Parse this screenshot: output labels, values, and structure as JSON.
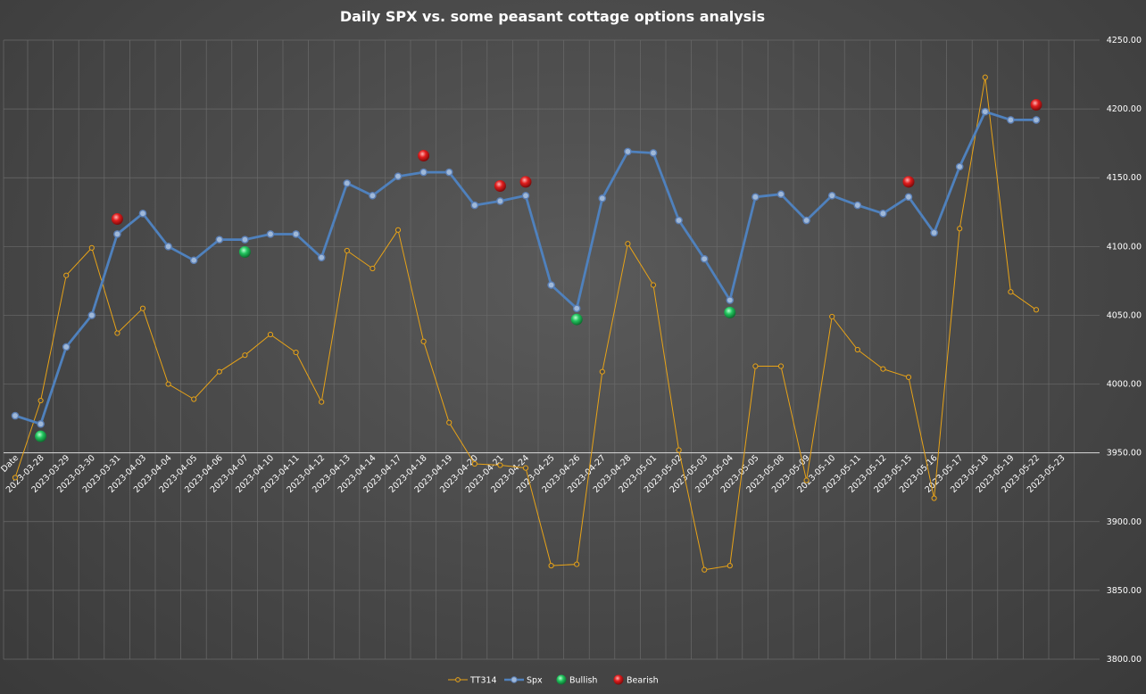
{
  "chart_data": {
    "type": "line",
    "title": "Daily SPX vs. some peasant cottage options analysis",
    "xlabel": "",
    "ylabel": "",
    "ylim": [
      3800,
      4250
    ],
    "y_ticks": [
      "3800.00",
      "3850.00",
      "3900.00",
      "3950.00",
      "4000.00",
      "4050.00",
      "4100.00",
      "4150.00",
      "4200.00",
      "4250.00"
    ],
    "categories": [
      "Date",
      "2023-03-28",
      "2023-03-29",
      "2023-03-30",
      "2023-03-31",
      "2023-04-03",
      "2023-04-04",
      "2023-04-05",
      "2023-04-06",
      "2023-04-07",
      "2023-04-10",
      "2023-04-11",
      "2023-04-12",
      "2023-04-13",
      "2023-04-14",
      "2023-04-17",
      "2023-04-18",
      "2023-04-19",
      "2023-04-20",
      "2023-04-21",
      "2023-04-24",
      "2023-04-25",
      "2023-04-26",
      "2023-04-27",
      "2023-04-28",
      "2023-05-01",
      "2023-05-02",
      "2023-05-03",
      "2023-05-04",
      "2023-05-05",
      "2023-05-08",
      "2023-05-09",
      "2023-05-10",
      "2023-05-11",
      "2023-05-12",
      "2023-05-15",
      "2023-05-16",
      "2023-05-17",
      "2023-05-18",
      "2023-05-19",
      "2023-05-22",
      "2023-05-23"
    ],
    "grid": true,
    "legend_position": "bottom",
    "series": [
      {
        "name": "TT314",
        "kind": "line",
        "color": "#e8a317",
        "values": [
          3932,
          3988,
          4079,
          4099,
          4037,
          4055,
          4000,
          3989,
          4009,
          4021,
          4036,
          4023,
          3987,
          4097,
          4084,
          4112,
          4031,
          3972,
          3942,
          3941,
          3939,
          3868,
          3869,
          4009,
          4102,
          4072,
          3952,
          3865,
          3868,
          4013,
          4013,
          3930,
          4049,
          4025,
          4011,
          4005,
          3917,
          4113,
          4223,
          4067,
          4054,
          null
        ]
      },
      {
        "name": "Spx",
        "kind": "line",
        "color": "#4f81bd",
        "values": [
          3977,
          3971,
          4027,
          4050,
          4109,
          4124,
          4100,
          4090,
          4105,
          4105,
          4109,
          4109,
          4092,
          4146,
          4137,
          4151,
          4154,
          4154,
          4130,
          4133,
          4137,
          4072,
          4055,
          4135,
          4169,
          4168,
          4119,
          4091,
          4061,
          4136,
          4138,
          4119,
          4137,
          4130,
          4124,
          4136,
          4110,
          4158,
          4198,
          4192,
          4192,
          null
        ]
      },
      {
        "name": "Bullish",
        "kind": "marker",
        "color": "#22c55e",
        "values": [
          null,
          3962,
          null,
          null,
          null,
          null,
          null,
          null,
          null,
          4096,
          null,
          null,
          null,
          null,
          null,
          null,
          null,
          null,
          null,
          null,
          null,
          null,
          4047,
          null,
          null,
          null,
          null,
          null,
          4052,
          null,
          null,
          null,
          null,
          null,
          null,
          null,
          null,
          null,
          null,
          null,
          null,
          null
        ]
      },
      {
        "name": "Bearish",
        "kind": "marker",
        "color": "#e11d1d",
        "values": [
          null,
          null,
          null,
          null,
          4120,
          null,
          null,
          null,
          null,
          null,
          null,
          null,
          null,
          null,
          null,
          null,
          4166,
          null,
          null,
          4144,
          4147,
          null,
          null,
          null,
          null,
          null,
          null,
          null,
          null,
          null,
          null,
          null,
          null,
          null,
          null,
          4147,
          null,
          null,
          null,
          null,
          4203,
          null
        ]
      }
    ]
  }
}
